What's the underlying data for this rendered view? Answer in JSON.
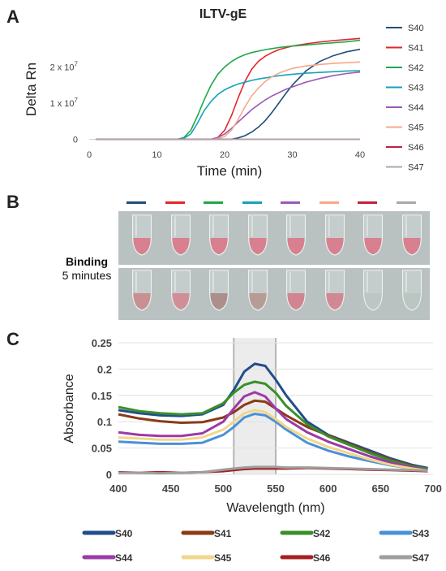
{
  "panels": {
    "a": "A",
    "b": "B",
    "c": "C"
  },
  "panel_b": {
    "label_bold": "Binding",
    "label_sub": "5 minutes",
    "top_row_color": "#d97a8a",
    "bottom_row_colors": [
      "#c98a8c",
      "#d08a92",
      "#a88a86",
      "#b49890",
      "#d07f8c",
      "#d3828f",
      "#bcc6c3",
      "#b8c5c0"
    ]
  },
  "chart_data": [
    {
      "type": "line",
      "title": "ILTV-gE",
      "xlabel": "Time (min)",
      "ylabel": "Delta Rn",
      "xlim": [
        0,
        40
      ],
      "ylim": [
        -1000000,
        30000000
      ],
      "x_ticks": [
        "0",
        "10",
        "20",
        "30",
        "40"
      ],
      "y_ticks": [
        {
          "value": 0,
          "label": "0"
        },
        {
          "value": 10000000,
          "label": "1 x 10",
          "exp": "7"
        },
        {
          "value": 20000000,
          "label": "2 x 10",
          "exp": "7"
        }
      ],
      "grid": false,
      "legend_position": "right",
      "x": [
        1,
        3,
        5,
        7,
        9,
        10,
        11,
        12,
        13,
        14,
        15,
        16,
        17,
        18,
        19,
        20,
        21,
        22,
        23,
        24,
        25,
        26,
        27,
        28,
        29,
        30,
        32,
        34,
        36,
        38,
        40
      ],
      "series": [
        {
          "name": "S40",
          "color": "#1f4e79",
          "values": [
            0,
            0,
            0,
            0,
            0,
            0,
            0,
            0,
            0,
            0,
            0,
            0,
            0,
            0,
            0,
            0,
            0,
            0.4,
            1.0,
            2.0,
            3.4,
            5.2,
            7.5,
            10.0,
            12.6,
            15.0,
            18.9,
            21.5,
            23.1,
            24.2,
            24.9
          ]
        },
        {
          "name": "S41",
          "color": "#e3262b",
          "values": [
            0,
            0,
            0,
            0,
            0,
            0,
            0,
            0,
            0,
            0,
            0,
            0,
            0,
            0,
            0.5,
            2.5,
            6.5,
            11.5,
            16.0,
            19.4,
            21.6,
            23.0,
            24.0,
            24.8,
            25.3,
            25.8,
            26.4,
            26.9,
            27.3,
            27.6,
            27.9
          ]
        },
        {
          "name": "S42",
          "color": "#1fa84a",
          "values": [
            0,
            0,
            0,
            0,
            0,
            0,
            0,
            0,
            0,
            0.5,
            2.5,
            6.5,
            11.0,
            15.0,
            18.0,
            20.0,
            21.5,
            22.6,
            23.4,
            24.0,
            24.4,
            24.8,
            25.1,
            25.4,
            25.6,
            25.8,
            26.1,
            26.4,
            26.7,
            27.0,
            27.4
          ]
        },
        {
          "name": "S43",
          "color": "#17a2b8",
          "values": [
            0,
            0,
            0,
            0,
            0,
            0,
            0,
            0,
            0,
            0.3,
            1.5,
            4.5,
            8.0,
            10.5,
            12.4,
            13.7,
            14.6,
            15.3,
            15.8,
            16.3,
            16.7,
            17.0,
            17.3,
            17.6,
            17.8,
            18.0,
            18.3,
            18.5,
            18.7,
            18.9,
            19.0
          ]
        },
        {
          "name": "S44",
          "color": "#9b59b6",
          "values": [
            0,
            0,
            0,
            0,
            0,
            0,
            0,
            0,
            0,
            0,
            0,
            0,
            0,
            0,
            0.5,
            1.5,
            3.0,
            4.8,
            6.5,
            8.2,
            9.6,
            10.9,
            12.0,
            12.9,
            13.8,
            14.5,
            15.8,
            16.8,
            17.6,
            18.2,
            18.6
          ]
        },
        {
          "name": "S45",
          "color": "#f5a98a",
          "values": [
            0,
            0,
            0,
            0,
            0,
            0,
            0,
            0,
            0,
            0,
            0,
            0,
            0,
            0,
            0.2,
            0.8,
            2.5,
            5.5,
            9.0,
            12.0,
            14.2,
            16.0,
            17.3,
            18.3,
            19.0,
            19.6,
            20.3,
            20.7,
            21.0,
            21.2,
            21.4
          ]
        },
        {
          "name": "S46",
          "color": "#c0223f",
          "values": [
            0,
            0,
            0,
            0,
            0,
            0,
            0,
            0,
            0,
            0,
            0,
            0,
            0,
            0,
            0,
            0,
            0,
            0,
            0,
            0,
            0,
            0,
            0,
            0,
            0,
            0,
            0,
            0,
            0,
            0,
            0
          ]
        },
        {
          "name": "S47",
          "color": "#a9a9a9",
          "values": [
            0,
            0,
            0,
            0,
            0,
            0,
            0,
            0,
            0,
            0,
            0,
            0,
            0,
            0,
            0,
            0,
            0,
            0,
            0,
            0,
            0,
            0,
            0,
            0,
            0,
            0,
            0,
            0,
            0,
            0,
            0
          ]
        }
      ]
    },
    {
      "type": "line",
      "title": "",
      "xlabel": "Wavelength (nm)",
      "ylabel": "Absorbance",
      "xlim": [
        400,
        700
      ],
      "ylim": [
        0,
        0.25
      ],
      "x_ticks": [
        "400",
        "450",
        "500",
        "550",
        "600",
        "650",
        "700"
      ],
      "y_ticks": [
        "0",
        "0.05",
        "0.1",
        "0.15",
        "0.2",
        "0.25"
      ],
      "grid": true,
      "shaded_band": [
        510,
        550
      ],
      "legend_position": "bottom",
      "x": [
        400,
        420,
        440,
        460,
        480,
        500,
        510,
        520,
        530,
        540,
        550,
        560,
        580,
        600,
        620,
        640,
        660,
        680,
        695
      ],
      "series": [
        {
          "name": "S40",
          "color": "#1f4e8c",
          "values": [
            0.122,
            0.116,
            0.112,
            0.111,
            0.114,
            0.132,
            0.16,
            0.195,
            0.21,
            0.206,
            0.18,
            0.15,
            0.1,
            0.075,
            0.06,
            0.045,
            0.03,
            0.018,
            0.012
          ]
        },
        {
          "name": "S41",
          "color": "#8b3a17",
          "values": [
            0.114,
            0.106,
            0.101,
            0.098,
            0.099,
            0.108,
            0.118,
            0.132,
            0.14,
            0.138,
            0.125,
            0.112,
            0.09,
            0.074,
            0.058,
            0.042,
            0.028,
            0.016,
            0.01
          ]
        },
        {
          "name": "S42",
          "color": "#3a8f2a",
          "values": [
            0.128,
            0.12,
            0.116,
            0.114,
            0.116,
            0.135,
            0.155,
            0.17,
            0.176,
            0.172,
            0.155,
            0.13,
            0.095,
            0.072,
            0.056,
            0.04,
            0.026,
            0.015,
            0.01
          ]
        },
        {
          "name": "S43",
          "color": "#4a90d9",
          "values": [
            0.062,
            0.06,
            0.058,
            0.058,
            0.06,
            0.075,
            0.09,
            0.108,
            0.115,
            0.112,
            0.1,
            0.085,
            0.06,
            0.045,
            0.034,
            0.025,
            0.017,
            0.011,
            0.008
          ]
        },
        {
          "name": "S44",
          "color": "#9b3aa8",
          "values": [
            0.08,
            0.075,
            0.073,
            0.073,
            0.078,
            0.1,
            0.125,
            0.148,
            0.156,
            0.148,
            0.125,
            0.105,
            0.08,
            0.062,
            0.048,
            0.034,
            0.022,
            0.013,
            0.008
          ]
        },
        {
          "name": "S45",
          "color": "#f0d78a",
          "values": [
            0.07,
            0.068,
            0.066,
            0.066,
            0.07,
            0.085,
            0.1,
            0.116,
            0.122,
            0.118,
            0.105,
            0.09,
            0.068,
            0.052,
            0.04,
            0.028,
            0.018,
            0.011,
            0.007
          ]
        },
        {
          "name": "S46",
          "color": "#a51f1f",
          "values": [
            0.004,
            0.003,
            0.004,
            0.003,
            0.004,
            0.006,
            0.008,
            0.01,
            0.011,
            0.011,
            0.011,
            0.011,
            0.012,
            0.011,
            0.01,
            0.009,
            0.008,
            0.007,
            0.006
          ]
        },
        {
          "name": "S47",
          "color": "#9e9e9e",
          "values": [
            0.003,
            0.003,
            0.002,
            0.003,
            0.004,
            0.009,
            0.011,
            0.013,
            0.014,
            0.014,
            0.014,
            0.013,
            0.013,
            0.012,
            0.011,
            0.01,
            0.009,
            0.008,
            0.007
          ]
        }
      ]
    }
  ]
}
